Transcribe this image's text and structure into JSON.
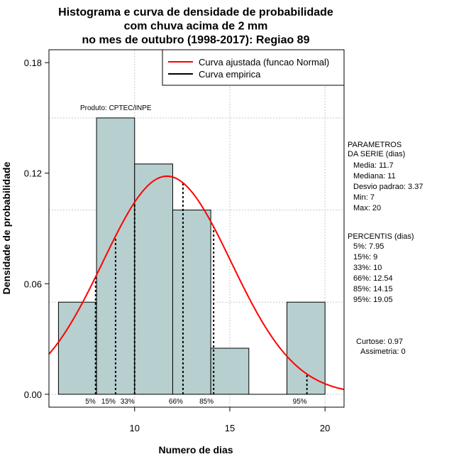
{
  "chart_data": {
    "type": "bar",
    "title_lines": [
      "Histograma e curva de densidade de probabilidade",
      "com chuva acima de 2 mm",
      "no mes de outubro (1998-2017): Regiao 89"
    ],
    "xlabel": "Numero de dias",
    "ylabel": "Densidade de probabilidade",
    "xlim": [
      5.5,
      21
    ],
    "ylim": [
      -0.007,
      0.187
    ],
    "xticks": [
      10,
      15,
      20
    ],
    "yticks": [
      0.0,
      0.06,
      0.12,
      0.18
    ],
    "ytick_labels": [
      "0.00",
      "0.06",
      "0.12",
      "0.18"
    ],
    "bins": [
      {
        "x0": 6,
        "x1": 8,
        "density": 0.05
      },
      {
        "x0": 8,
        "x1": 10,
        "density": 0.15
      },
      {
        "x0": 10,
        "x1": 12,
        "density": 0.125
      },
      {
        "x0": 12,
        "x1": 14,
        "density": 0.1
      },
      {
        "x0": 14,
        "x1": 16,
        "density": 0.025
      },
      {
        "x0": 16,
        "x1": 18,
        "density": 0.0
      },
      {
        "x0": 18,
        "x1": 20,
        "density": 0.05
      }
    ],
    "normal_fit": {
      "mean": 11.7,
      "sd": 3.37
    },
    "percentile_markers": [
      {
        "label": "5%",
        "x": 7.95
      },
      {
        "label": "15%",
        "x": 9
      },
      {
        "label": "33%",
        "x": 10
      },
      {
        "label": "66%",
        "x": 12.54
      },
      {
        "label": "85%",
        "x": 14.15
      },
      {
        "label": "95%",
        "x": 19.05
      }
    ],
    "legend": [
      {
        "label": "Curva ajustada (funcao Normal)",
        "color": "#ff0000"
      },
      {
        "label": "Curva empirica",
        "color": "#000000"
      }
    ],
    "annotation": "Produto: CPTEC/INPE",
    "bar_color": "#b7cfcf",
    "curve_color": "#ff0000",
    "grid_color": "#c8c8c8",
    "grid_lines_x": [
      10,
      15,
      20
    ],
    "grid_lines_y": [
      0.0,
      0.05,
      0.1,
      0.15
    ]
  },
  "side_panel": {
    "params_header_1": "PARAMETROS",
    "params_header_2": "DA SERIE (dias)",
    "params": [
      "Media: 11.7",
      "Mediana: 11",
      "Desvio padrao: 3.37",
      "Min: 7",
      "Max: 20"
    ],
    "percentis_header": "PERCENTIS (dias)",
    "percentis": [
      "5%: 7.95",
      "15%: 9",
      "33%: 10",
      "66%: 12.54",
      "85%: 14.15",
      "95%: 19.05"
    ],
    "curtose": "Curtose: 0.97",
    "assimetria": "Assimetria: 0"
  }
}
